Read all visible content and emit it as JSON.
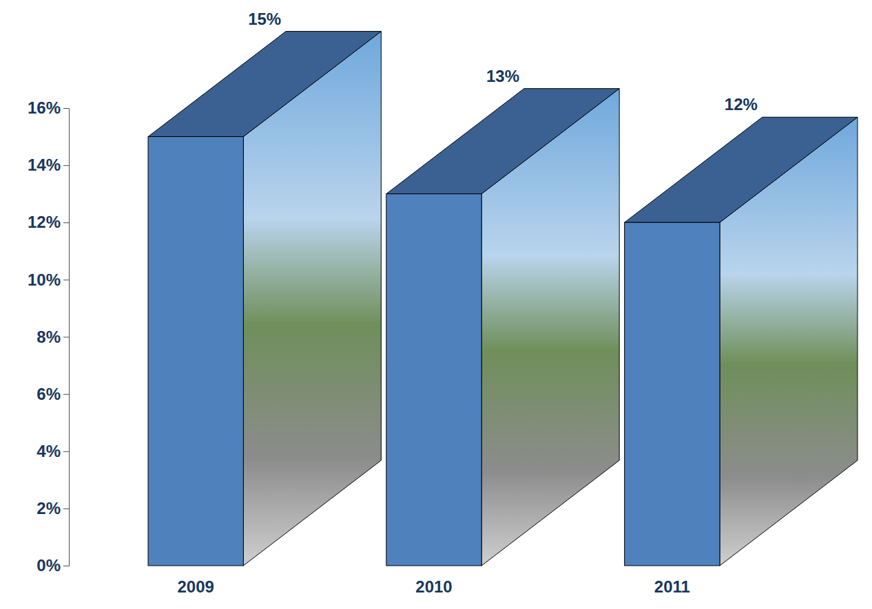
{
  "chart_data": {
    "type": "bar",
    "categories": [
      "2009",
      "2010",
      "2011"
    ],
    "values": [
      15,
      13,
      12
    ],
    "value_labels": [
      "15%",
      "13%",
      "12%"
    ],
    "data_labels": true,
    "color": "#4f81bd",
    "ylim": [
      0,
      16
    ],
    "yticks": [
      {
        "value": 0,
        "label": "0%"
      },
      {
        "value": 2,
        "label": "2%"
      },
      {
        "value": 4,
        "label": "4%"
      },
      {
        "value": 6,
        "label": "6%"
      },
      {
        "value": 8,
        "label": "8%"
      },
      {
        "value": 10,
        "label": "10%"
      },
      {
        "value": 12,
        "label": "12%"
      },
      {
        "value": 14,
        "label": "14%"
      },
      {
        "value": 16,
        "label": "16%"
      }
    ],
    "grid": false
  }
}
